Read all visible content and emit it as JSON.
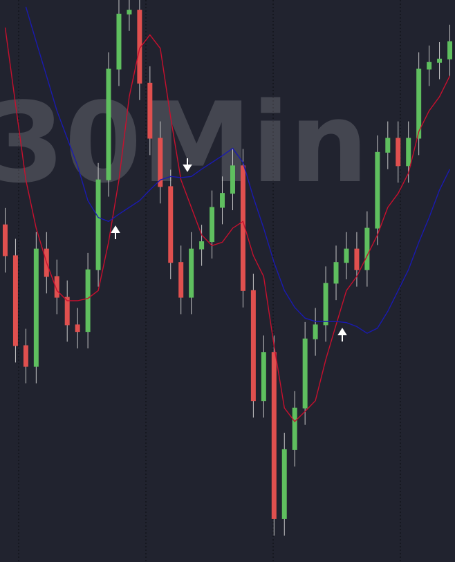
{
  "chart_data": {
    "type": "candlestick",
    "watermark": "30Min",
    "up_color": "#5fbf5f",
    "down_color": "#e0504f",
    "ylim": [
      0,
      100
    ],
    "open": [
      60,
      54.5,
      38.5,
      34.8,
      55.7,
      50.8,
      47.1,
      42.2,
      41.0,
      52.0,
      68.0,
      87.7,
      97.5,
      98.2,
      85.2,
      75.4,
      66.8,
      53.3,
      47.1,
      55.7,
      57.0,
      63.1,
      65.6,
      70.5,
      48.3,
      28.7,
      37.3,
      7.7,
      20.0,
      27.4,
      39.7,
      42.2,
      49.6,
      53.3,
      55.7,
      52.0,
      59.4,
      72.9,
      75.4,
      70.5,
      75.4,
      87.7,
      88.9,
      89.5
    ],
    "high": [
      63,
      57.5,
      41.5,
      58.7,
      58.7,
      53.8,
      50.1,
      45.2,
      55,
      71,
      90.7,
      100.5,
      101.2,
      101.2,
      88.2,
      78.4,
      69.8,
      56.3,
      58.7,
      60,
      66.1,
      68.6,
      73.5,
      73.5,
      51.3,
      40.3,
      40.3,
      23,
      30.4,
      42.7,
      45.2,
      52.6,
      56.3,
      58.7,
      58.7,
      62.4,
      75.9,
      78.4,
      78.4,
      78.4,
      90.7,
      91.9,
      92.5,
      95.6
    ],
    "low": [
      51.5,
      35.5,
      31.8,
      31.8,
      47.8,
      44.1,
      39.2,
      38,
      38,
      49,
      65,
      84.7,
      94.5,
      82.2,
      72.4,
      63.8,
      50.3,
      44.1,
      44.1,
      52.7,
      54,
      60.1,
      62.6,
      45.3,
      25.7,
      25.7,
      4.7,
      4.7,
      17,
      24.4,
      36.7,
      39.2,
      46.6,
      50.3,
      49,
      49,
      56.4,
      69.9,
      67.5,
      67.5,
      72.4,
      84.7,
      85.9,
      86.5
    ],
    "close": [
      54.5,
      38.5,
      34.8,
      55.7,
      50.8,
      47.1,
      42.2,
      41.0,
      52.0,
      68.0,
      87.7,
      97.5,
      98.2,
      85.2,
      75.4,
      66.8,
      53.3,
      47.1,
      55.7,
      57.0,
      63.1,
      65.6,
      70.5,
      48.3,
      28.7,
      37.3,
      7.7,
      20.0,
      27.4,
      39.7,
      42.2,
      49.6,
      53.3,
      55.7,
      52.0,
      59.4,
      72.9,
      75.4,
      70.5,
      75.4,
      87.7,
      88.9,
      89.5,
      92.6
    ],
    "lines": [
      {
        "color": "#c8102e",
        "values": [
          95.1,
          81.5,
          68.0,
          59.4,
          53.3,
          48.3,
          46.5,
          46.5,
          46.9,
          48.3,
          56.9,
          68.0,
          82.8,
          91.4,
          93.8,
          91.4,
          79.1,
          68.0,
          63.1,
          58.2,
          56.3,
          56.9,
          59.4,
          60.6,
          54.5,
          50.8,
          38.5,
          27.4,
          25.0,
          26.8,
          28.7,
          36.0,
          42.2,
          48.3,
          50.8,
          54.5,
          58.2,
          63.1,
          65.6,
          69.2,
          76.6,
          80.3,
          82.8,
          86.5
        ]
      },
      {
        "color": "#1a1ab0",
        "values": [
          null,
          null,
          98.8,
          92.6,
          86.5,
          80.3,
          75.4,
          70.5,
          64.3,
          61.3,
          60.6,
          61.9,
          63.1,
          64.3,
          66.2,
          68.0,
          68.6,
          68.4,
          68.6,
          69.9,
          71.1,
          72.3,
          73.6,
          71.1,
          64.9,
          59.4,
          53.3,
          48.3,
          45.3,
          43.4,
          42.8,
          42.8,
          42.8,
          42.6,
          41.9,
          40.7,
          41.6,
          44.6,
          48.3,
          52.0,
          56.9,
          61.3,
          66.2,
          69.9
        ]
      }
    ]
  }
}
